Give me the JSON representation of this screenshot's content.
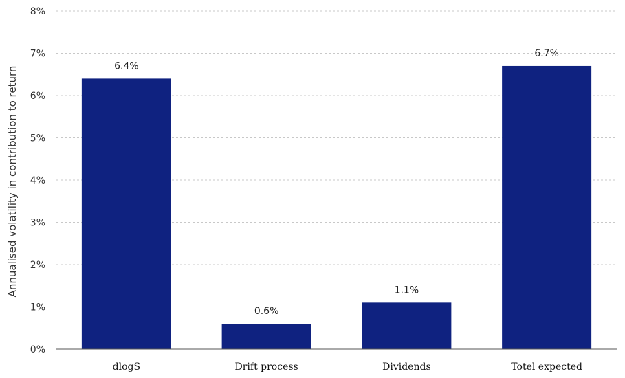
{
  "chart_data": {
    "type": "bar",
    "title": "",
    "xlabel": "",
    "ylabel": "Annualised volatility in contribution to return",
    "categories": [
      "dlogS",
      "Drift process",
      "Dividends",
      "Totel expected"
    ],
    "values": [
      6.4,
      0.6,
      1.1,
      6.7
    ],
    "data_labels": [
      "6.4%",
      "0.6%",
      "1.1%",
      "6.7%"
    ],
    "ylim": [
      0,
      8
    ],
    "yticks": [
      0,
      1,
      2,
      3,
      4,
      5,
      6,
      7,
      8
    ],
    "ytick_labels": [
      "0%",
      "1%",
      "2%",
      "3%",
      "4%",
      "5%",
      "6%",
      "7%",
      "8%"
    ],
    "grid": true,
    "bar_color": "#0f2280",
    "legend": "none"
  }
}
